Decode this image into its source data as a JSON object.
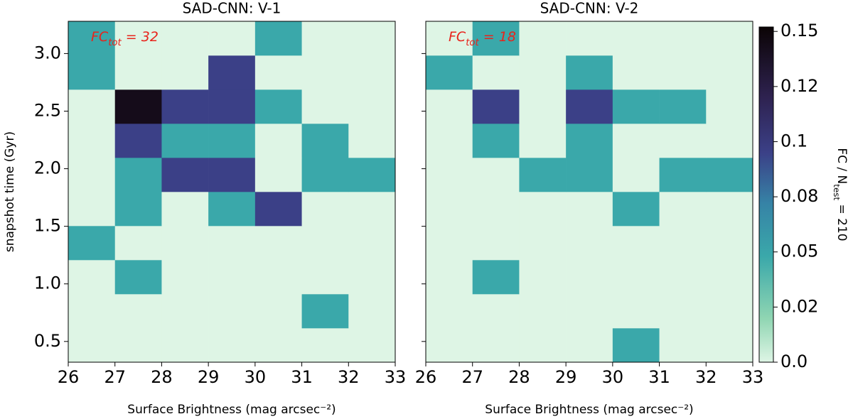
{
  "chart_data": [
    {
      "type": "heatmap",
      "title": "SAD-CNN: V-1",
      "xlabel": "Surface Brightness (mag arcsec⁻²)",
      "ylabel": "snapshot time (Gyr)",
      "annotation": {
        "main": "FC",
        "sub": "tot",
        "rest": " = 32"
      },
      "x_bins": [
        26,
        27,
        28,
        29,
        30,
        31,
        32,
        33
      ],
      "y_bins": [
        0.32,
        0.616,
        0.912,
        1.208,
        1.504,
        1.8,
        2.096,
        2.392,
        2.688,
        2.984,
        3.28
      ],
      "values": [
        [
          0,
          0,
          0,
          0,
          0,
          0,
          0
        ],
        [
          0,
          0,
          0,
          0,
          0,
          0.048,
          0
        ],
        [
          0,
          0.048,
          0,
          0,
          0,
          0,
          0
        ],
        [
          0.048,
          0,
          0,
          0,
          0,
          0,
          0
        ],
        [
          0,
          0.048,
          0,
          0.048,
          0.095,
          0,
          0
        ],
        [
          0,
          0.048,
          0.095,
          0.095,
          0,
          0.048,
          0.048
        ],
        [
          0,
          0.095,
          0.048,
          0.048,
          0,
          0.048,
          0
        ],
        [
          0,
          0.143,
          0.095,
          0.095,
          0.048,
          0,
          0
        ],
        [
          0.048,
          0,
          0,
          0.095,
          0,
          0,
          0
        ],
        [
          0.048,
          0,
          0,
          0,
          0.048,
          0,
          0
        ]
      ],
      "xlim": [
        26,
        33
      ],
      "ylim": [
        0.32,
        3.28
      ],
      "xticks": [
        26,
        27,
        28,
        29,
        30,
        31,
        32,
        33
      ],
      "yticks": [
        0.5,
        {
          "value": 1,
          "label": "1.0"
        },
        1.5,
        {
          "value": 2,
          "label": "2.0"
        },
        2.5,
        {
          "value": 3,
          "label": "3.0"
        }
      ]
    },
    {
      "type": "heatmap",
      "title": "SAD-CNN: V-2",
      "xlabel": "Surface Brightness (mag arcsec⁻²)",
      "annotation": {
        "main": "FC",
        "sub": "tot",
        "rest": " = 18"
      },
      "x_bins": [
        26,
        27,
        28,
        29,
        30,
        31,
        32,
        33
      ],
      "y_bins": [
        0.32,
        0.616,
        0.912,
        1.208,
        1.504,
        1.8,
        2.096,
        2.392,
        2.688,
        2.984,
        3.28
      ],
      "values": [
        [
          0,
          0,
          0,
          0,
          0.048,
          0,
          0
        ],
        [
          0,
          0,
          0,
          0,
          0,
          0,
          0
        ],
        [
          0,
          0.048,
          0,
          0,
          0,
          0,
          0
        ],
        [
          0,
          0,
          0,
          0,
          0,
          0,
          0
        ],
        [
          0,
          0,
          0,
          0,
          0.048,
          0,
          0
        ],
        [
          0,
          0,
          0.048,
          0.048,
          0,
          0.048,
          0.048
        ],
        [
          0,
          0.048,
          0,
          0.048,
          0,
          0,
          0
        ],
        [
          0,
          0.095,
          0,
          0.095,
          0.048,
          0.048,
          0
        ],
        [
          0.048,
          0,
          0,
          0.048,
          0,
          0,
          0
        ],
        [
          0,
          0.048,
          0,
          0,
          0,
          0,
          0
        ]
      ],
      "xlim": [
        26,
        33
      ],
      "ylim": [
        0.32,
        3.28
      ],
      "xticks": [
        26,
        27,
        28,
        29,
        30,
        31,
        32,
        33
      ],
      "yticks": [
        0.5,
        1,
        1.5,
        2,
        2.5,
        3
      ]
    }
  ],
  "colorbar": {
    "label": {
      "main": "FC / N",
      "sub": "test",
      "rest": " = 210"
    },
    "clim": [
      0,
      0.152
    ],
    "ticks": [
      {
        "value": 0,
        "label": "0.0"
      },
      {
        "value": 0.025,
        "label": "0.02"
      },
      0.05,
      {
        "value": 0.075,
        "label": "0.08"
      },
      0.1,
      {
        "value": 0.125,
        "label": "0.12"
      },
      0.15
    ],
    "colorscale": [
      [
        0,
        "#def5e5"
      ],
      [
        0.02,
        "#8fd5b2"
      ],
      [
        0.048,
        "#3aa8aa"
      ],
      [
        0.072,
        "#3683a6"
      ],
      [
        0.095,
        "#3b4087"
      ],
      [
        0.12,
        "#2e2250"
      ],
      [
        0.152,
        "#0b0405"
      ]
    ]
  }
}
